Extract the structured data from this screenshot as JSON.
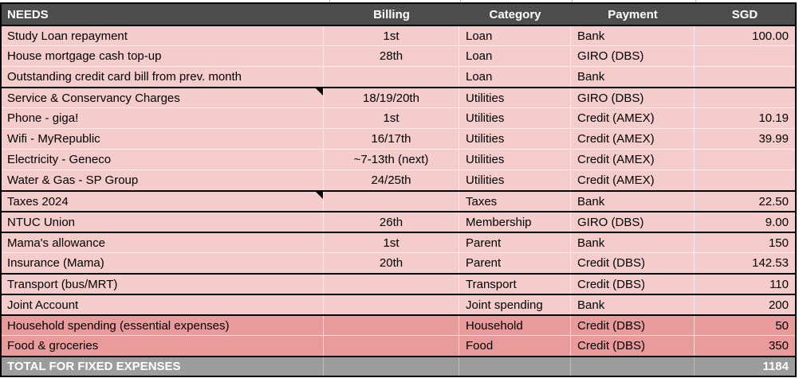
{
  "header": {
    "needs": "NEEDS",
    "billing": "Billing",
    "category": "Category",
    "payment": "Payment",
    "sgd": "SGD"
  },
  "rows": [
    {
      "needs": "Study Loan repayment",
      "billing": "1st",
      "category": "Loan",
      "payment": "Bank",
      "sgd": "100.00",
      "variant": "pink",
      "separator": "dark",
      "note": false
    },
    {
      "needs": "House mortgage cash top-up",
      "billing": "28th",
      "category": "Loan",
      "payment": "GIRO (DBS)",
      "sgd": "",
      "variant": "pink",
      "separator": "light",
      "note": false
    },
    {
      "needs": "Outstanding credit card bill from prev. month",
      "billing": "",
      "category": "Loan",
      "payment": "Bank",
      "sgd": "",
      "variant": "pink",
      "separator": "light",
      "note": false
    },
    {
      "needs": "Service & Conservancy Charges",
      "billing": "18/19/20th",
      "category": "Utilities",
      "payment": "GIRO (DBS)",
      "sgd": "",
      "variant": "pink",
      "separator": "dark",
      "note": true
    },
    {
      "needs": "Phone - giga!",
      "billing": "1st",
      "category": "Utilities",
      "payment": "Credit (AMEX)",
      "sgd": "10.19",
      "variant": "pink",
      "separator": "light",
      "note": false
    },
    {
      "needs": "Wifi - MyRepublic",
      "billing": "16/17th",
      "category": "Utilities",
      "payment": "Credit (AMEX)",
      "sgd": "39.99",
      "variant": "pink",
      "separator": "light",
      "note": false
    },
    {
      "needs": "Electricity - Geneco",
      "billing": "~7-13th (next)",
      "category": "Utilities",
      "payment": "Credit (AMEX)",
      "sgd": "",
      "variant": "pink",
      "separator": "light",
      "note": false
    },
    {
      "needs": "Water & Gas - SP Group",
      "billing": "24/25th",
      "category": "Utilities",
      "payment": "Credit (AMEX)",
      "sgd": "",
      "variant": "pink",
      "separator": "light",
      "note": false
    },
    {
      "needs": "Taxes 2024",
      "billing": "",
      "category": "Taxes",
      "payment": "Bank",
      "sgd": "22.50",
      "variant": "pink",
      "separator": "dark",
      "note": true
    },
    {
      "needs": "NTUC Union",
      "billing": "26th",
      "category": "Membership",
      "payment": "GIRO (DBS)",
      "sgd": "9.00",
      "variant": "pink",
      "separator": "dark",
      "note": false
    },
    {
      "needs": "Mama's allowance",
      "billing": "1st",
      "category": "Parent",
      "payment": "Bank",
      "sgd": "150",
      "variant": "pink",
      "separator": "dark",
      "note": false
    },
    {
      "needs": "Insurance (Mama)",
      "billing": "20th",
      "category": "Parent",
      "payment": "Credit (DBS)",
      "sgd": "142.53",
      "variant": "pink",
      "separator": "light",
      "note": false
    },
    {
      "needs": "Transport (bus/MRT)",
      "billing": "",
      "category": "Transport",
      "payment": "Credit (DBS)",
      "sgd": "110",
      "variant": "pink",
      "separator": "dark",
      "note": false
    },
    {
      "needs": "Joint Account",
      "billing": "",
      "category": "Joint spending",
      "payment": "Bank",
      "sgd": "200",
      "variant": "pink",
      "separator": "dark",
      "note": false
    },
    {
      "needs": "Household spending (essential expenses)",
      "billing": "",
      "category": "Household",
      "payment": "Credit (DBS)",
      "sgd": "50",
      "variant": "salmon",
      "separator": "dark",
      "note": false
    },
    {
      "needs": "Food & groceries",
      "billing": "",
      "category": "Food",
      "payment": "Credit (DBS)",
      "sgd": "350",
      "variant": "salmon",
      "separator": "light",
      "note": false
    }
  ],
  "total": {
    "label": "TOTAL FOR FIXED EXPENSES",
    "value": "1184"
  },
  "colors": {
    "header_bg": "#4d4d4d",
    "row_pink": "#f4cccc",
    "row_salmon": "#e99a9a",
    "total_bg": "#9c9c9c",
    "border_black": "#000000"
  }
}
